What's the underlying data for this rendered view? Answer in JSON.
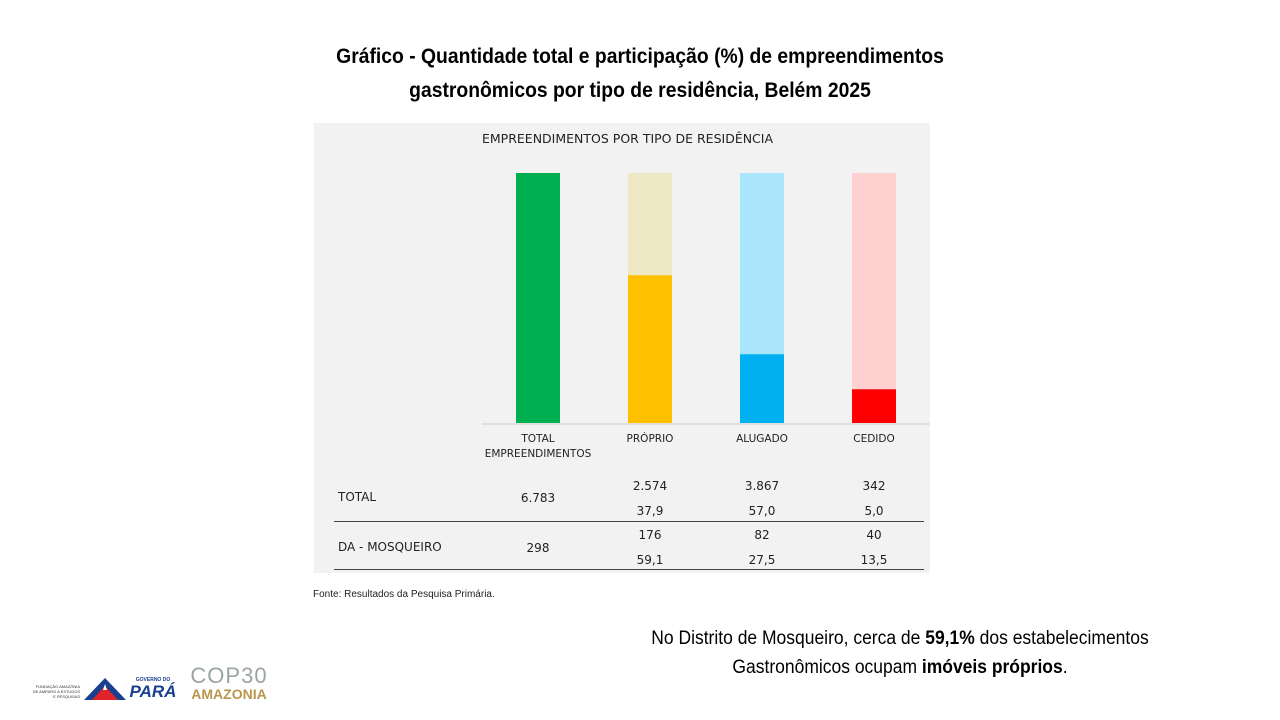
{
  "slide": {
    "title_line1": "Gráfico - Quantidade total e participação (%) de empreendimentos",
    "title_line2": "gastronômicos por tipo de residência, Belém 2025",
    "source": "Fonte: Resultados da Pesquisa Primária.",
    "note": {
      "part1": "No Distrito de Mosqueiro, cerca de ",
      "bold1": "59,1%",
      "part2": " dos estabelecimentos",
      "part3": "Gastronômicos ocupam ",
      "bold2": "imóveis próprios",
      "part4": "."
    }
  },
  "chart_data": {
    "type": "bar",
    "title": "EMPREENDIMENTOS POR TIPO DE RESIDÊNCIA",
    "categories": [
      "TOTAL EMPREENDIMENTOS",
      "PRÓPRIO",
      "ALUGADO",
      "CEDIDO"
    ],
    "series_note": "stacked 100% bars showing DA - MOSQUEIRO share",
    "bars": [
      {
        "category": "TOTAL EMPREENDIMENTOS",
        "value": 100.0,
        "color": "#00b050",
        "background": "#00b050"
      },
      {
        "category": "PRÓPRIO",
        "value": 59.1,
        "color": "#ffc000",
        "background": "#eee9c4"
      },
      {
        "category": "ALUGADO",
        "value": 27.5,
        "color": "#00b0f0",
        "background": "#a9e6fb"
      },
      {
        "category": "CEDIDO",
        "value": 13.5,
        "color": "#ff0000",
        "background": "#ffd0d0"
      }
    ],
    "ylim": [
      0,
      100
    ],
    "table": {
      "rows": [
        {
          "label": "TOTAL",
          "total": "6.783",
          "counts": [
            "2.574",
            "3.867",
            "342"
          ],
          "percents": [
            "37,9",
            "57,0",
            "5,0"
          ]
        },
        {
          "label": "DA - MOSQUEIRO",
          "total": "298",
          "counts": [
            "176",
            "82",
            "40"
          ],
          "percents": [
            "59,1",
            "27,5",
            "13,5"
          ]
        }
      ]
    }
  },
  "logos": {
    "fapespa_text": "FUNDAÇÃO AMAZÔNIA DE AMPARO A ESTUDOS E PESQUISAS",
    "governo_text": "GOVERNO DO",
    "para_text": "PARÁ",
    "cop_text": "COP30",
    "amazonia_text": "AMAZONIA",
    "colors": {
      "blue": "#1a3f8f",
      "red": "#e3232a",
      "cop_gray": "#9aa3a5",
      "cop_gold": "#b8964e"
    }
  }
}
